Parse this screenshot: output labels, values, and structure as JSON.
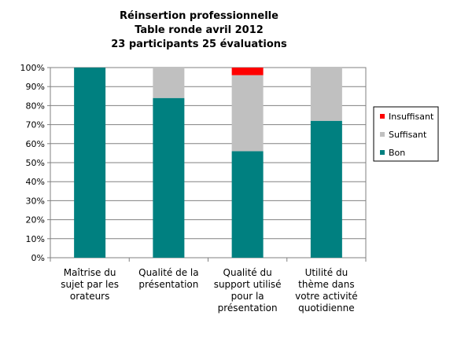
{
  "chart_data": {
    "type": "bar",
    "stacked": true,
    "percent": true,
    "title": [
      "Réinsertion professionnelle",
      "Table ronde avril 2012",
      "23 participants 25 évaluations"
    ],
    "categories": [
      [
        "Maîtrise du",
        "sujet par les",
        "orateurs"
      ],
      [
        "Qualité de la",
        "présentation"
      ],
      [
        "Qualité du",
        "support utilisé",
        "pour la",
        "présentation"
      ],
      [
        "Utilité du",
        "thème dans",
        "votre activité",
        "quotidienne"
      ]
    ],
    "series": [
      {
        "name": "Bon",
        "color": "#008080",
        "values": [
          100,
          84,
          56,
          72
        ]
      },
      {
        "name": "Suffisant",
        "color": "#c0c0c0",
        "values": [
          0,
          16,
          40,
          28
        ]
      },
      {
        "name": "Insuffisant",
        "color": "#ff0000",
        "values": [
          0,
          0,
          4,
          0
        ]
      }
    ],
    "ylim": [
      0,
      100
    ],
    "yticks": [
      "0%",
      "10%",
      "20%",
      "30%",
      "40%",
      "50%",
      "60%",
      "70%",
      "80%",
      "90%",
      "100%"
    ],
    "legend_order": [
      "Insuffisant",
      "Suffisant",
      "Bon"
    ],
    "legend_position": "right",
    "grid": true
  }
}
